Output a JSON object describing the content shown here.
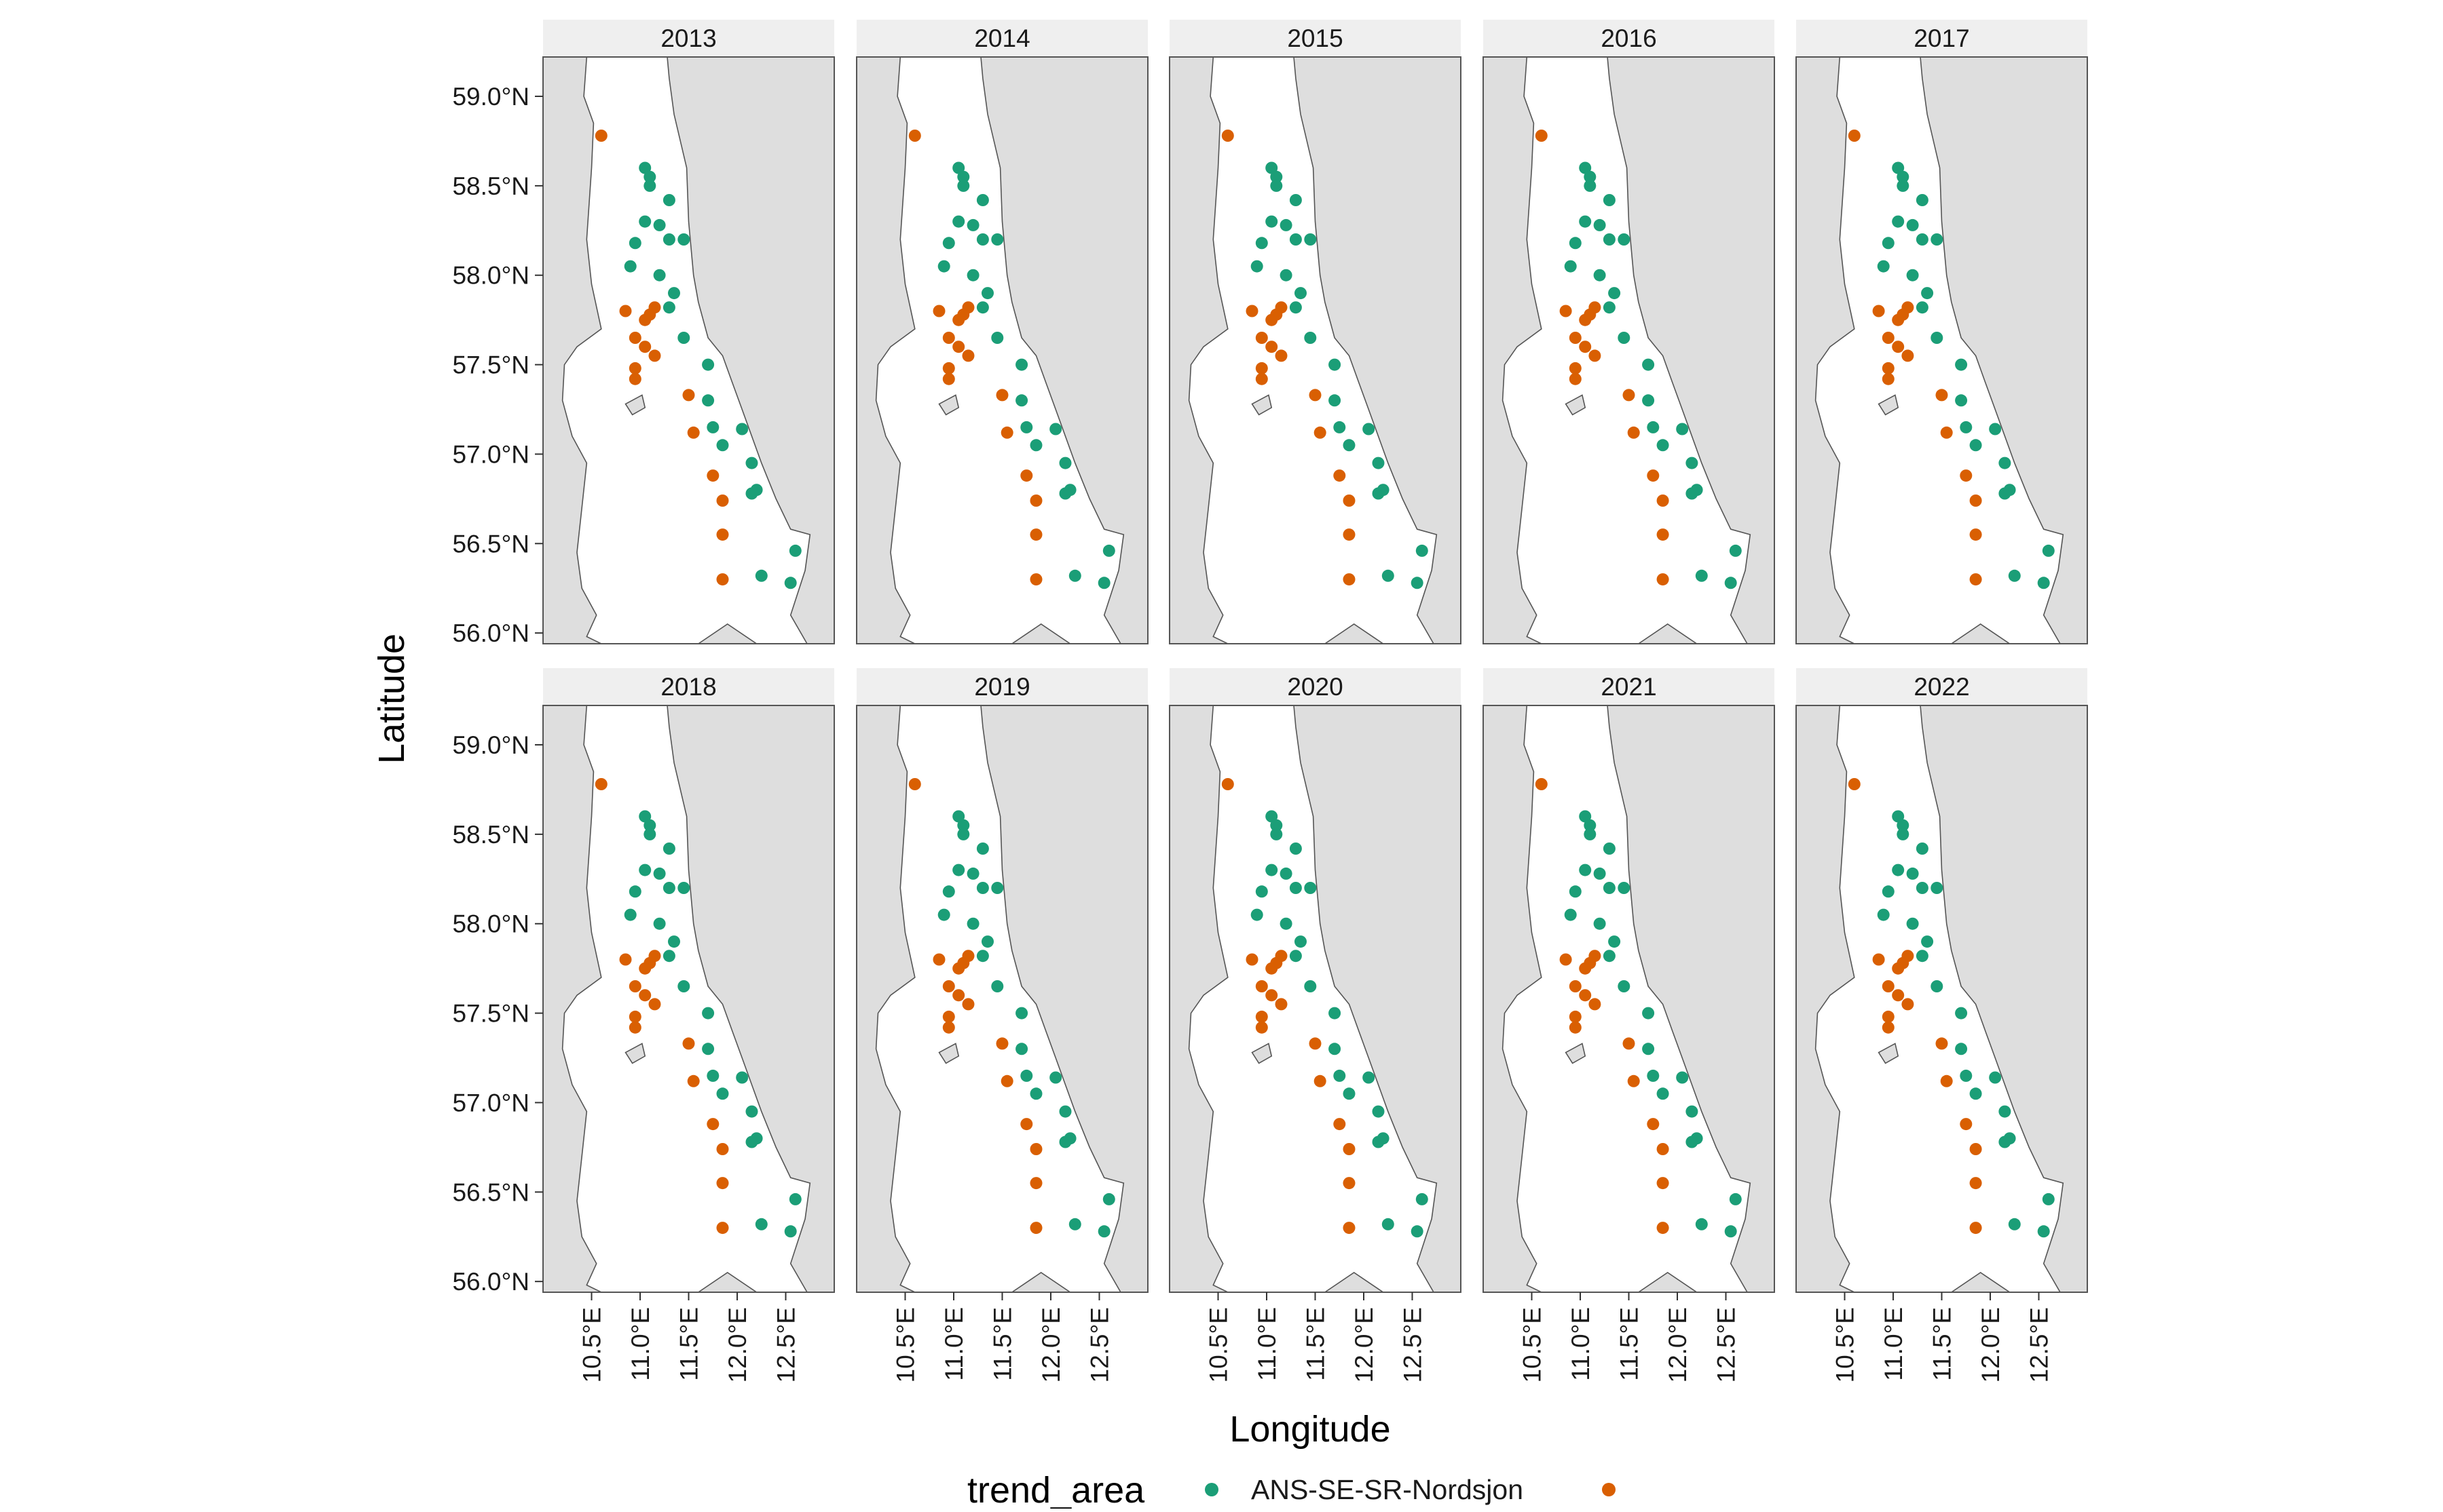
{
  "chart_data": {
    "type": "scatter",
    "facet_by": "year",
    "panels": [
      "2013",
      "2014",
      "2015",
      "2016",
      "2017",
      "2018",
      "2019",
      "2020",
      "2021",
      "2022"
    ],
    "xlabel": "Longitude",
    "ylabel": "Latitude",
    "xlim": [
      10.0,
      13.0
    ],
    "ylim": [
      55.94,
      59.22
    ],
    "x_ticks": [
      10.5,
      11.0,
      11.5,
      12.0,
      12.5
    ],
    "x_tick_labels": [
      "10.5°E",
      "11.0°E",
      "11.5°E",
      "12.0°E",
      "12.5°E"
    ],
    "y_ticks": [
      56.0,
      56.5,
      57.0,
      57.5,
      58.0,
      58.5,
      59.0
    ],
    "y_tick_labels": [
      "56.0°N",
      "56.5°N",
      "57.0°N",
      "57.5°N",
      "58.0°N",
      "58.5°N",
      "59.0°N"
    ],
    "legend": {
      "title": "trend_area",
      "position": "bottom",
      "entries": [
        {
          "label": "ANS-SE-SR-Nordsjon",
          "color": "#1b9e77"
        },
        {
          "label": "",
          "color": "#d95f02"
        }
      ]
    },
    "colors": {
      "green": "#1b9e77",
      "orange": "#d95f02",
      "land": "#dedede",
      "strip": "#efefef"
    },
    "series": [
      {
        "name": "ANS-SE-SR-Nordsjon",
        "color": "#1b9e77",
        "points": [
          [
            11.05,
            58.6
          ],
          [
            11.1,
            58.55
          ],
          [
            11.3,
            58.42
          ],
          [
            11.1,
            58.5
          ],
          [
            11.05,
            58.3
          ],
          [
            11.2,
            58.28
          ],
          [
            11.3,
            58.2
          ],
          [
            11.45,
            58.2
          ],
          [
            10.95,
            58.18
          ],
          [
            11.2,
            58.0
          ],
          [
            10.9,
            58.05
          ],
          [
            11.35,
            57.9
          ],
          [
            11.3,
            57.82
          ],
          [
            11.45,
            57.65
          ],
          [
            11.7,
            57.5
          ],
          [
            11.7,
            57.3
          ],
          [
            11.75,
            57.15
          ],
          [
            11.85,
            57.05
          ],
          [
            12.05,
            57.14
          ],
          [
            12.15,
            56.95
          ],
          [
            12.15,
            56.78
          ],
          [
            12.2,
            56.8
          ],
          [
            12.6,
            56.46
          ],
          [
            12.25,
            56.32
          ],
          [
            12.55,
            56.28
          ]
        ]
      },
      {
        "name": "",
        "color": "#d95f02",
        "points": [
          [
            10.6,
            58.78
          ],
          [
            10.85,
            57.8
          ],
          [
            11.1,
            57.78
          ],
          [
            11.05,
            57.75
          ],
          [
            11.15,
            57.82
          ],
          [
            10.95,
            57.65
          ],
          [
            11.05,
            57.6
          ],
          [
            11.15,
            57.55
          ],
          [
            10.95,
            57.48
          ],
          [
            10.95,
            57.42
          ],
          [
            11.5,
            57.33
          ],
          [
            11.55,
            57.12
          ],
          [
            11.75,
            56.88
          ],
          [
            11.85,
            56.74
          ],
          [
            11.85,
            56.55
          ],
          [
            11.85,
            56.3
          ]
        ]
      }
    ]
  }
}
